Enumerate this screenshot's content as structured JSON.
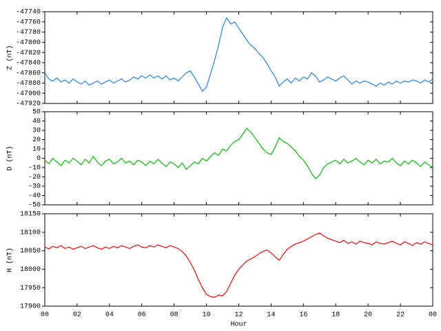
{
  "chart_data": [
    {
      "type": "line",
      "ylabel": "Z (nT)",
      "xlim": [
        0,
        24
      ],
      "ylim": [
        -47920,
        -47740
      ],
      "yticks": [
        -47920,
        -47900,
        -47880,
        -47860,
        -47840,
        -47820,
        -47800,
        -47780,
        -47760,
        -47740
      ],
      "x": [
        0,
        0.25,
        0.5,
        0.75,
        1,
        1.25,
        1.5,
        1.75,
        2,
        2.25,
        2.5,
        2.75,
        3,
        3.25,
        3.5,
        3.75,
        4,
        4.25,
        4.5,
        4.75,
        5,
        5.25,
        5.5,
        5.75,
        6,
        6.25,
        6.5,
        6.75,
        7,
        7.25,
        7.5,
        7.75,
        8,
        8.25,
        8.5,
        8.75,
        9,
        9.25,
        9.5,
        9.75,
        10,
        10.25,
        10.5,
        10.75,
        11,
        11.25,
        11.5,
        11.75,
        12,
        12.25,
        12.5,
        12.75,
        13,
        13.25,
        13.5,
        13.75,
        14,
        14.25,
        14.5,
        14.75,
        15,
        15.25,
        15.5,
        15.75,
        16,
        16.25,
        16.5,
        16.75,
        17,
        17.25,
        17.5,
        17.75,
        18,
        18.25,
        18.5,
        18.75,
        19,
        19.25,
        19.5,
        19.75,
        20,
        20.25,
        20.5,
        20.75,
        21,
        21.25,
        21.5,
        21.75,
        22,
        22.25,
        22.5,
        22.75,
        23,
        23.25,
        23.5,
        23.75,
        24
      ],
      "series": [
        {
          "name": "Z",
          "color": "#1e82f0",
          "values": [
            -47860,
            -47872,
            -47876,
            -47870,
            -47878,
            -47874,
            -47880,
            -47872,
            -47878,
            -47882,
            -47876,
            -47884,
            -47880,
            -47876,
            -47882,
            -47878,
            -47874,
            -47880,
            -47876,
            -47872,
            -47878,
            -47874,
            -47868,
            -47872,
            -47866,
            -47870,
            -47864,
            -47870,
            -47866,
            -47872,
            -47866,
            -47874,
            -47870,
            -47876,
            -47868,
            -47860,
            -47856,
            -47868,
            -47882,
            -47896,
            -47888,
            -47862,
            -47836,
            -47806,
            -47770,
            -47752,
            -47764,
            -47760,
            -47772,
            -47784,
            -47796,
            -47806,
            -47812,
            -47822,
            -47830,
            -47842,
            -47856,
            -47868,
            -47886,
            -47878,
            -47872,
            -47880,
            -47870,
            -47876,
            -47868,
            -47872,
            -47860,
            -47866,
            -47878,
            -47874,
            -47868,
            -47872,
            -47876,
            -47870,
            -47866,
            -47874,
            -47882,
            -47876,
            -47880,
            -47876,
            -47878,
            -47882,
            -47886,
            -47880,
            -47884,
            -47878,
            -47882,
            -47876,
            -47880,
            -47876,
            -47878,
            -47874,
            -47876,
            -47880,
            -47874,
            -47878,
            -47872
          ]
        }
      ]
    },
    {
      "type": "line",
      "ylabel": "D (nT)",
      "xlim": [
        0,
        24
      ],
      "ylim": [
        -50,
        50
      ],
      "yticks": [
        -50,
        -40,
        -30,
        -20,
        -10,
        0,
        10,
        20,
        30,
        40,
        50
      ],
      "x": [
        0,
        0.25,
        0.5,
        0.75,
        1,
        1.25,
        1.5,
        1.75,
        2,
        2.25,
        2.5,
        2.75,
        3,
        3.25,
        3.5,
        3.75,
        4,
        4.25,
        4.5,
        4.75,
        5,
        5.25,
        5.5,
        5.75,
        6,
        6.25,
        6.5,
        6.75,
        7,
        7.25,
        7.5,
        7.75,
        8,
        8.25,
        8.5,
        8.75,
        9,
        9.25,
        9.5,
        9.75,
        10,
        10.25,
        10.5,
        10.75,
        11,
        11.25,
        11.5,
        11.75,
        12,
        12.25,
        12.5,
        12.75,
        13,
        13.25,
        13.5,
        13.75,
        14,
        14.25,
        14.5,
        14.75,
        15,
        15.25,
        15.5,
        15.75,
        16,
        16.25,
        16.5,
        16.75,
        17,
        17.25,
        17.5,
        17.75,
        18,
        18.25,
        18.5,
        18.75,
        19,
        19.25,
        19.5,
        19.75,
        20,
        20.25,
        20.5,
        20.75,
        21,
        21.25,
        21.5,
        21.75,
        22,
        22.25,
        22.5,
        22.75,
        23,
        23.25,
        23.5,
        23.75,
        24
      ],
      "series": [
        {
          "name": "D",
          "color": "#00c000",
          "values": [
            -2,
            -6,
            0,
            -4,
            -8,
            -2,
            -5,
            0,
            -3,
            -7,
            -1,
            -5,
            2,
            -4,
            -8,
            -3,
            -1,
            -6,
            -4,
            0,
            -5,
            -3,
            -7,
            -2,
            -4,
            -8,
            -3,
            -6,
            -1,
            -5,
            -9,
            -4,
            -6,
            -10,
            -5,
            -12,
            -8,
            -4,
            -6,
            0,
            -3,
            2,
            6,
            3,
            10,
            8,
            14,
            18,
            20,
            26,
            32,
            28,
            22,
            16,
            10,
            6,
            4,
            12,
            22,
            18,
            16,
            12,
            8,
            2,
            -2,
            -8,
            -16,
            -22,
            -18,
            -10,
            -6,
            -4,
            -2,
            -6,
            -1,
            -5,
            -3,
            0,
            -4,
            -7,
            -2,
            -5,
            -1,
            -6,
            -3,
            -4,
            0,
            -5,
            -8,
            -3,
            -6,
            -2,
            -5,
            -9,
            -4,
            -7,
            -10
          ]
        }
      ]
    },
    {
      "type": "line",
      "ylabel": "H (nT)",
      "xlabel": "Hour",
      "xlim": [
        0,
        24
      ],
      "ylim": [
        17900,
        18150
      ],
      "yticks": [
        17900,
        17950,
        18000,
        18050,
        18100,
        18150
      ],
      "xticks": [
        {
          "value": 0,
          "label": "00"
        },
        {
          "value": 2,
          "label": "02"
        },
        {
          "value": 4,
          "label": "04"
        },
        {
          "value": 6,
          "label": "06"
        },
        {
          "value": 8,
          "label": "08"
        },
        10,
        12,
        14,
        16,
        18,
        20,
        22,
        {
          "value": 24,
          "label": "00"
        }
      ],
      "x": [
        0,
        0.25,
        0.5,
        0.75,
        1,
        1.25,
        1.5,
        1.75,
        2,
        2.25,
        2.5,
        2.75,
        3,
        3.25,
        3.5,
        3.75,
        4,
        4.25,
        4.5,
        4.75,
        5,
        5.25,
        5.5,
        5.75,
        6,
        6.25,
        6.5,
        6.75,
        7,
        7.25,
        7.5,
        7.75,
        8,
        8.25,
        8.5,
        8.75,
        9,
        9.25,
        9.5,
        9.75,
        10,
        10.25,
        10.5,
        10.75,
        11,
        11.25,
        11.5,
        11.75,
        12,
        12.25,
        12.5,
        12.75,
        13,
        13.25,
        13.5,
        13.75,
        14,
        14.25,
        14.5,
        14.75,
        15,
        15.25,
        15.5,
        15.75,
        16,
        16.25,
        16.5,
        16.75,
        17,
        17.25,
        17.5,
        17.75,
        18,
        18.25,
        18.5,
        18.75,
        19,
        19.25,
        19.5,
        19.75,
        20,
        20.25,
        20.5,
        20.75,
        21,
        21.25,
        21.5,
        21.75,
        22,
        22.25,
        22.5,
        22.75,
        23,
        23.25,
        23.5,
        23.75,
        24
      ],
      "series": [
        {
          "name": "H",
          "color": "#ff0000",
          "values": [
            18060,
            18055,
            18062,
            18058,
            18064,
            18056,
            18060,
            18054,
            18058,
            18062,
            18056,
            18060,
            18064,
            18058,
            18054,
            18060,
            18056,
            18062,
            18058,
            18064,
            18060,
            18056,
            18062,
            18066,
            18060,
            18058,
            18064,
            18060,
            18066,
            18062,
            18058,
            18064,
            18060,
            18056,
            18048,
            18036,
            18018,
            17998,
            17972,
            17950,
            17932,
            17926,
            17924,
            17930,
            17928,
            17940,
            17962,
            17984,
            18000,
            18012,
            18022,
            18028,
            18034,
            18042,
            18048,
            18052,
            18044,
            18034,
            18024,
            18040,
            18054,
            18062,
            18068,
            18072,
            18076,
            18082,
            18088,
            18094,
            18098,
            18090,
            18084,
            18080,
            18076,
            18072,
            18078,
            18070,
            18074,
            18068,
            18076,
            18072,
            18070,
            18066,
            18074,
            18070,
            18068,
            18072,
            18076,
            18070,
            18066,
            18074,
            18070,
            18064,
            18072,
            18068,
            18074,
            18070,
            18066
          ]
        }
      ]
    }
  ]
}
